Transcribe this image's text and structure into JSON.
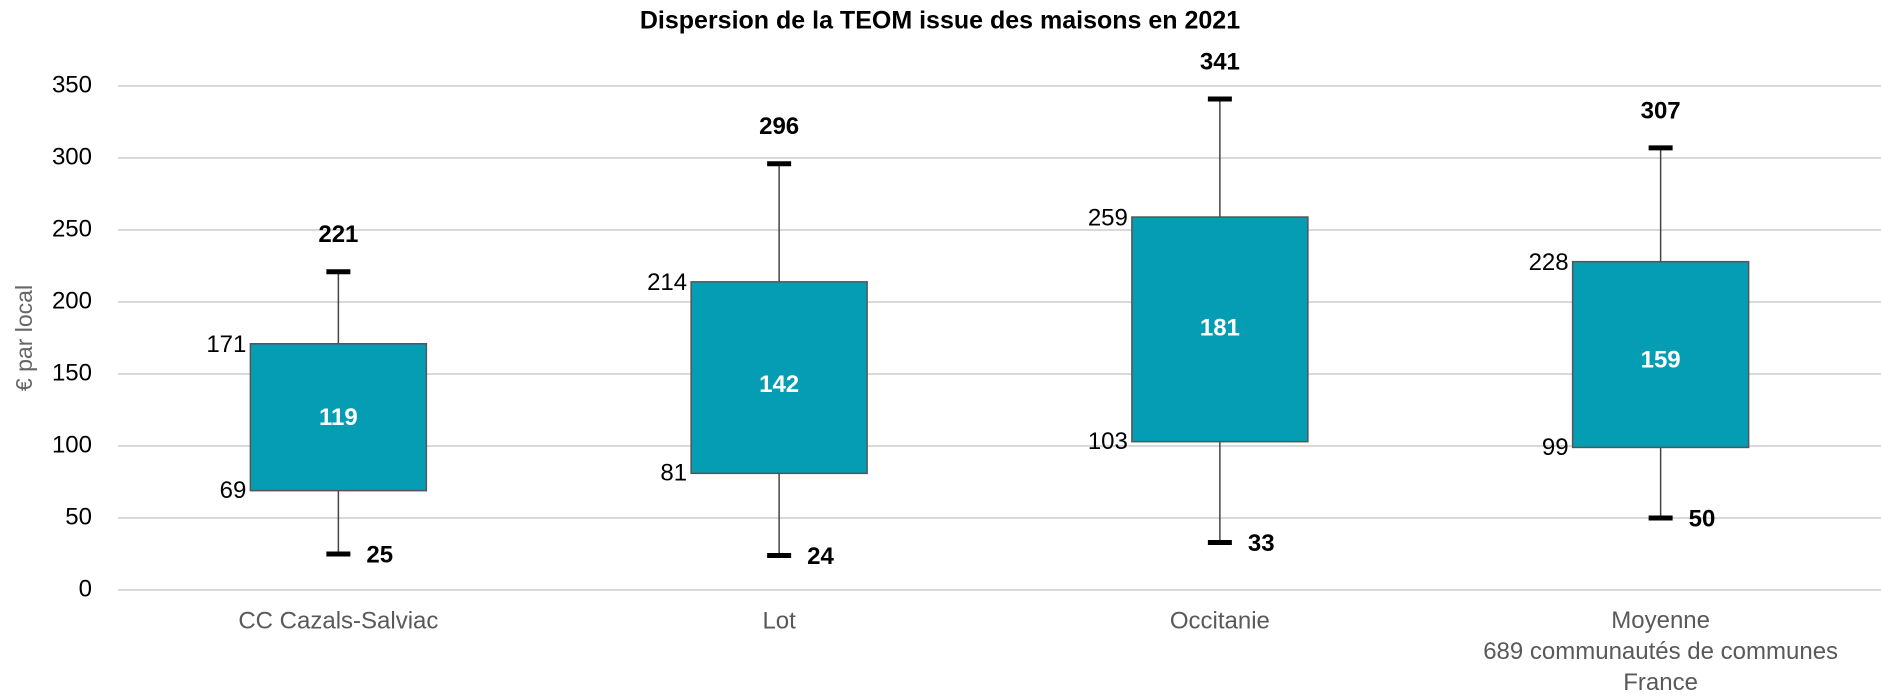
{
  "chart_data": {
    "type": "box",
    "title": "Dispersion de la TEOM issue des maisons en 2021",
    "y_label": "€ par local",
    "categories": [
      "CC Cazals-Salviac",
      "Lot",
      "Occitanie",
      "Moyenne\n689 communautés de communes\nFrance"
    ],
    "min": [
      25,
      24,
      33,
      50
    ],
    "q1": [
      69,
      81,
      103,
      99
    ],
    "median": [
      119,
      142,
      181,
      159
    ],
    "q3": [
      171,
      214,
      259,
      228
    ],
    "max": [
      221,
      296,
      341,
      307
    ],
    "color": "#059db4",
    "ylim": [
      0,
      350
    ],
    "yticks": [
      0,
      50,
      100,
      150,
      200,
      250,
      300,
      350
    ],
    "grid": true
  }
}
